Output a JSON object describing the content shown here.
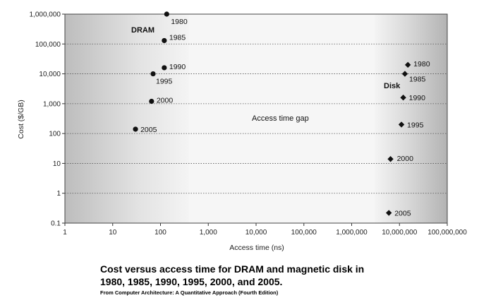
{
  "chart_data": {
    "type": "scatter",
    "x_scale": "log",
    "y_scale": "log",
    "xlabel": "Access time (ns)",
    "ylabel": "Cost ($/GB)",
    "xlim": [
      1,
      100000000
    ],
    "ylim": [
      0.1,
      1000000
    ],
    "x_ticks": [
      "1",
      "10",
      "100",
      "1,000",
      "10,000",
      "100,000",
      "1,000,000",
      "10,000,000",
      "100,000,000"
    ],
    "y_ticks": [
      "0.1",
      "1",
      "10",
      "100",
      "1,000",
      "10,000",
      "100,000",
      "1,000,000"
    ],
    "grid": "horizontal dotted",
    "shaded_regions": [
      "DRAM",
      "Disk"
    ],
    "annotation": "Access time gap",
    "series": [
      {
        "name": "DRAM",
        "marker": "circle",
        "points": [
          {
            "label": "1980",
            "x": 135,
            "y": 1000000
          },
          {
            "label": "1985",
            "x": 120,
            "y": 130000
          },
          {
            "label": "1990",
            "x": 120,
            "y": 16000
          },
          {
            "label": "1995",
            "x": 70,
            "y": 10000
          },
          {
            "label": "2000",
            "x": 65,
            "y": 1200
          },
          {
            "label": "2005",
            "x": 30,
            "y": 140
          }
        ]
      },
      {
        "name": "Disk",
        "marker": "diamond",
        "points": [
          {
            "label": "1980",
            "x": 15000000,
            "y": 20000
          },
          {
            "label": "1985",
            "x": 13000000,
            "y": 10000
          },
          {
            "label": "1990",
            "x": 12000000,
            "y": 1600
          },
          {
            "label": "1995",
            "x": 11000000,
            "y": 200
          },
          {
            "label": "2000",
            "x": 6500000,
            "y": 14
          },
          {
            "label": "2005",
            "x": 6000000,
            "y": 0.22
          }
        ]
      }
    ]
  },
  "caption": {
    "line1": "Cost versus access time for DRAM and magnetic disk in",
    "line2": "1980, 1985, 1990, 1995, 2000, and 2005.",
    "source": "From Computer Architecture: A Quantitative Approach (Fourth Edition)"
  }
}
